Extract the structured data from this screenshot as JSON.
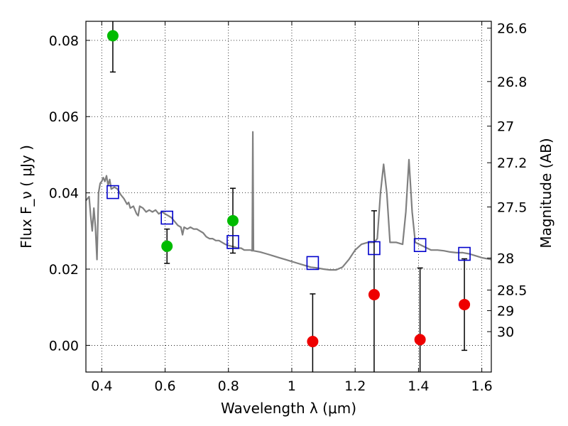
{
  "chart_data": {
    "type": "scatter",
    "xlabel": "Wavelength  λ (μm)",
    "ylabel": "Flux  F_ν  ( μJy )",
    "y2label": "Magnitude (AB)",
    "xlim": [
      0.35,
      1.63
    ],
    "ylim": [
      -0.007,
      0.085
    ],
    "grid": true,
    "x_ticks": [
      0.4,
      0.6,
      0.8,
      1.0,
      1.2,
      1.4,
      1.6
    ],
    "x_tick_labels": [
      "0.4",
      "0.6",
      "0.8",
      "1",
      "1.2",
      "1.4",
      "1.6"
    ],
    "y_ticks": [
      0.0,
      0.02,
      0.04,
      0.06,
      0.08
    ],
    "y_tick_labels": [
      "0.00",
      "0.02",
      "0.04",
      "0.06",
      "0.08"
    ],
    "y2_ticks": [
      {
        "label": "26.6",
        "flux": 0.0832
      },
      {
        "label": "26.8",
        "flux": 0.0692
      },
      {
        "label": "27",
        "flux": 0.0575
      },
      {
        "label": "27.2",
        "flux": 0.0479
      },
      {
        "label": "27.5",
        "flux": 0.0363
      },
      {
        "label": "28",
        "flux": 0.0229
      },
      {
        "label": "28.5",
        "flux": 0.0145
      },
      {
        "label": "29",
        "flux": 0.0091
      },
      {
        "label": "30",
        "flux": 0.0036
      }
    ],
    "series": [
      {
        "marker": "circle",
        "color": "#00bb00",
        "points": [
          {
            "x": 0.435,
            "y": 0.0812,
            "yerr": 0.0095
          },
          {
            "x": 0.606,
            "y": 0.026,
            "yerr": 0.0045
          },
          {
            "x": 0.814,
            "y": 0.0327,
            "yerr": 0.0085
          }
        ]
      },
      {
        "marker": "circle",
        "color": "#ee0000",
        "points": [
          {
            "x": 1.066,
            "y": 0.001,
            "yerr": 0.0125
          },
          {
            "x": 1.26,
            "y": 0.0133,
            "yerr": 0.022
          },
          {
            "x": 1.405,
            "y": 0.0015,
            "yerr": 0.0188
          },
          {
            "x": 1.545,
            "y": 0.0107,
            "yerr": 0.012
          }
        ]
      },
      {
        "marker": "square",
        "color": "#0000cc",
        "points": [
          {
            "x": 0.435,
            "y": 0.0402
          },
          {
            "x": 0.606,
            "y": 0.0335
          },
          {
            "x": 0.814,
            "y": 0.0271
          },
          {
            "x": 1.066,
            "y": 0.0216
          },
          {
            "x": 1.26,
            "y": 0.0255
          },
          {
            "x": 1.405,
            "y": 0.0263
          },
          {
            "x": 1.545,
            "y": 0.024
          }
        ]
      },
      {
        "type": "line",
        "color": "#808080",
        "points": [
          [
            0.35,
            0.038
          ],
          [
            0.36,
            0.039
          ],
          [
            0.365,
            0.034
          ],
          [
            0.37,
            0.03
          ],
          [
            0.375,
            0.036
          ],
          [
            0.38,
            0.031
          ],
          [
            0.385,
            0.0225
          ],
          [
            0.39,
            0.04
          ],
          [
            0.395,
            0.0425
          ],
          [
            0.4,
            0.043
          ],
          [
            0.405,
            0.044
          ],
          [
            0.41,
            0.043
          ],
          [
            0.415,
            0.0445
          ],
          [
            0.42,
            0.042
          ],
          [
            0.425,
            0.0435
          ],
          [
            0.43,
            0.041
          ],
          [
            0.44,
            0.0415
          ],
          [
            0.45,
            0.041
          ],
          [
            0.46,
            0.0395
          ],
          [
            0.47,
            0.0385
          ],
          [
            0.48,
            0.037
          ],
          [
            0.485,
            0.0375
          ],
          [
            0.49,
            0.036
          ],
          [
            0.5,
            0.0365
          ],
          [
            0.51,
            0.0345
          ],
          [
            0.515,
            0.034
          ],
          [
            0.52,
            0.0365
          ],
          [
            0.53,
            0.036
          ],
          [
            0.54,
            0.035
          ],
          [
            0.55,
            0.0355
          ],
          [
            0.56,
            0.035
          ],
          [
            0.57,
            0.0355
          ],
          [
            0.58,
            0.0345
          ],
          [
            0.59,
            0.035
          ],
          [
            0.6,
            0.0345
          ],
          [
            0.61,
            0.034
          ],
          [
            0.62,
            0.0335
          ],
          [
            0.63,
            0.0325
          ],
          [
            0.64,
            0.0315
          ],
          [
            0.65,
            0.031
          ],
          [
            0.655,
            0.029
          ],
          [
            0.66,
            0.031
          ],
          [
            0.67,
            0.0305
          ],
          [
            0.68,
            0.031
          ],
          [
            0.69,
            0.0305
          ],
          [
            0.7,
            0.0305
          ],
          [
            0.71,
            0.03
          ],
          [
            0.72,
            0.0295
          ],
          [
            0.73,
            0.0285
          ],
          [
            0.74,
            0.028
          ],
          [
            0.75,
            0.028
          ],
          [
            0.76,
            0.0275
          ],
          [
            0.77,
            0.0275
          ],
          [
            0.78,
            0.027
          ],
          [
            0.79,
            0.0265
          ],
          [
            0.8,
            0.0262
          ],
          [
            0.81,
            0.026
          ],
          [
            0.82,
            0.0258
          ],
          [
            0.83,
            0.0255
          ],
          [
            0.84,
            0.0255
          ],
          [
            0.85,
            0.025
          ],
          [
            0.86,
            0.025
          ],
          [
            0.87,
            0.025
          ],
          [
            0.875,
            0.0248
          ],
          [
            0.877,
            0.056
          ],
          [
            0.879,
            0.0248
          ],
          [
            0.9,
            0.0245
          ],
          [
            0.92,
            0.024
          ],
          [
            0.94,
            0.0235
          ],
          [
            0.96,
            0.023
          ],
          [
            0.98,
            0.0225
          ],
          [
            1.0,
            0.022
          ],
          [
            1.02,
            0.0215
          ],
          [
            1.04,
            0.021
          ],
          [
            1.06,
            0.0205
          ],
          [
            1.08,
            0.0203
          ],
          [
            1.1,
            0.02
          ],
          [
            1.12,
            0.0198
          ],
          [
            1.14,
            0.0198
          ],
          [
            1.16,
            0.0205
          ],
          [
            1.18,
            0.0225
          ],
          [
            1.2,
            0.025
          ],
          [
            1.22,
            0.0265
          ],
          [
            1.24,
            0.027
          ],
          [
            1.26,
            0.027
          ],
          [
            1.27,
            0.028
          ],
          [
            1.28,
            0.04
          ],
          [
            1.29,
            0.0475
          ],
          [
            1.3,
            0.04
          ],
          [
            1.31,
            0.027
          ],
          [
            1.33,
            0.027
          ],
          [
            1.35,
            0.0265
          ],
          [
            1.36,
            0.035
          ],
          [
            1.37,
            0.0487
          ],
          [
            1.38,
            0.035
          ],
          [
            1.39,
            0.027
          ],
          [
            1.42,
            0.0258
          ],
          [
            1.44,
            0.025
          ],
          [
            1.46,
            0.025
          ],
          [
            1.48,
            0.0248
          ],
          [
            1.5,
            0.0245
          ],
          [
            1.52,
            0.0243
          ],
          [
            1.54,
            0.0243
          ],
          [
            1.56,
            0.024
          ],
          [
            1.58,
            0.0235
          ],
          [
            1.6,
            0.023
          ],
          [
            1.63,
            0.0225
          ]
        ]
      }
    ]
  }
}
